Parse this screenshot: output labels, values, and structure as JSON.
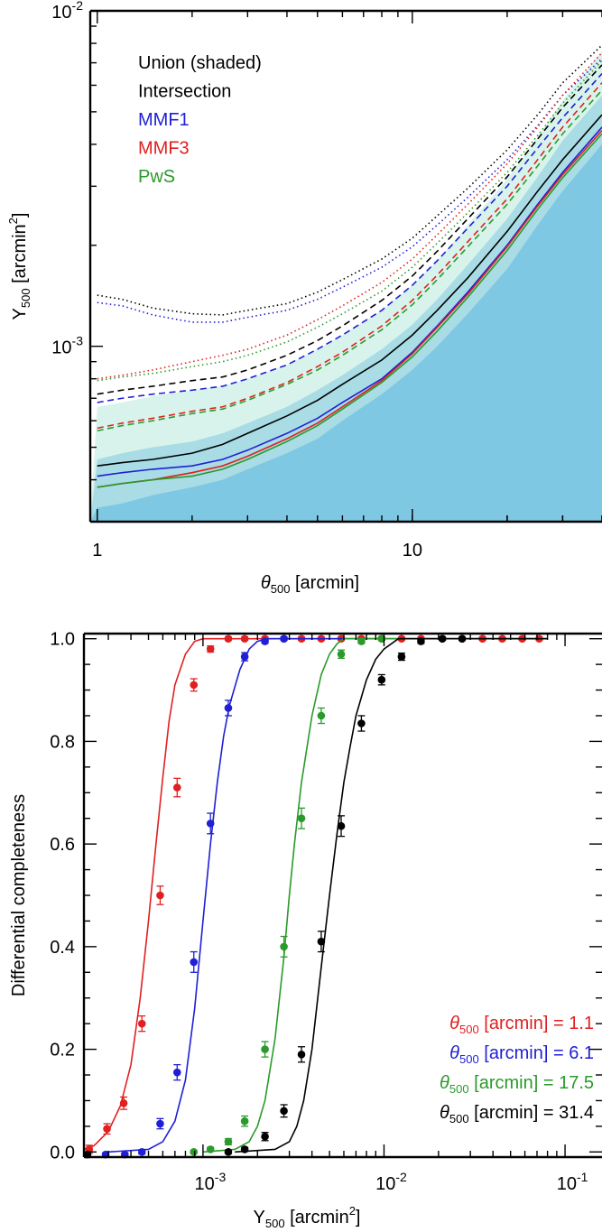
{
  "chart_data": [
    {
      "type": "line",
      "xlabel": "θ500 [arcmin]",
      "ylabel": "Y500 [arcmin²]",
      "x_scale": "log",
      "y_scale": "log",
      "xlim": [
        0.95,
        40
      ],
      "ylim": [
        0.0003,
        0.01
      ],
      "x_ticks": [
        1,
        10
      ],
      "y_ticks": [
        "10^-3",
        "10^-2"
      ],
      "x": [
        1.0,
        1.2,
        1.5,
        2.0,
        2.5,
        3.0,
        4.0,
        5.0,
        6.0,
        8.0,
        10.0,
        12.0,
        15.0,
        20.0,
        25.0,
        30.0,
        40.0
      ],
      "legend": [
        {
          "label": "Union (shaded)",
          "color": "#000000"
        },
        {
          "label": "Intersection",
          "color": "#000000"
        },
        {
          "label": "MMF1",
          "color": "#1f1fd6"
        },
        {
          "label": "MMF3",
          "color": "#e02020"
        },
        {
          "label": "PwS",
          "color": "#2a9a2a"
        }
      ],
      "union_bands": [
        {
          "name": "lower",
          "color": "#7ec8e3",
          "values": [
            0.00033,
            0.00034,
            0.00036,
            0.00038,
            0.0004,
            0.00043,
            0.00048,
            0.00053,
            0.0006,
            0.00072,
            0.00085,
            0.001,
            0.00125,
            0.0017,
            0.0023,
            0.0029,
            0.004
          ]
        },
        {
          "name": "middle",
          "color": "#a9dce5",
          "values": [
            0.00046,
            0.00048,
            0.0005,
            0.00052,
            0.00055,
            0.00059,
            0.00066,
            0.00074,
            0.00082,
            0.00098,
            0.00116,
            0.00138,
            0.00175,
            0.0024,
            0.0032,
            0.0041,
            0.0056
          ]
        },
        {
          "name": "upper",
          "color": "#d8f3ec",
          "values": [
            0.00066,
            0.00068,
            0.00071,
            0.00074,
            0.00076,
            0.0008,
            0.00088,
            0.00098,
            0.00108,
            0.00128,
            0.00152,
            0.0018,
            0.0023,
            0.00315,
            0.0042,
            0.0054,
            0.0076
          ]
        }
      ],
      "series": [
        {
          "name": "MMF1",
          "color": "#1f1fd6",
          "style": "dotted",
          "values": [
            0.00135,
            0.00132,
            0.00124,
            0.00118,
            0.00118,
            0.00122,
            0.00128,
            0.00138,
            0.0015,
            0.00172,
            0.00198,
            0.0023,
            0.00278,
            0.0036,
            0.00455,
            0.0056,
            0.0072
          ]
        },
        {
          "name": "MMF1",
          "color": "#1f1fd6",
          "style": "dashed",
          "values": [
            0.00068,
            0.0007,
            0.00072,
            0.00074,
            0.00076,
            0.0008,
            0.00088,
            0.00098,
            0.00108,
            0.00128,
            0.00152,
            0.0018,
            0.00225,
            0.003,
            0.0039,
            0.0048,
            0.0065
          ]
        },
        {
          "name": "MMF1",
          "color": "#1f1fd6",
          "style": "solid",
          "values": [
            0.00041,
            0.00042,
            0.00043,
            0.00044,
            0.00046,
            0.00049,
            0.00055,
            0.00061,
            0.00068,
            0.0008,
            0.00096,
            0.00115,
            0.00145,
            0.002,
            0.00265,
            0.0033,
            0.0045
          ]
        },
        {
          "name": "MMF3",
          "color": "#e02020",
          "style": "dotted",
          "values": [
            0.0008,
            0.00082,
            0.00085,
            0.0009,
            0.00094,
            0.00098,
            0.00108,
            0.0012,
            0.00132,
            0.00155,
            0.00182,
            0.00215,
            0.00265,
            0.0035,
            0.0045,
            0.0056,
            0.0075
          ]
        },
        {
          "name": "MMF3",
          "color": "#e02020",
          "style": "dashed",
          "values": [
            0.00057,
            0.00059,
            0.00061,
            0.00064,
            0.00066,
            0.0007,
            0.00078,
            0.00087,
            0.00096,
            0.00115,
            0.00137,
            0.00163,
            0.00205,
            0.00275,
            0.0036,
            0.0045,
            0.0061
          ]
        },
        {
          "name": "MMF3",
          "color": "#e02020",
          "style": "solid",
          "values": [
            0.00038,
            0.00039,
            0.0004,
            0.00042,
            0.00044,
            0.00047,
            0.00053,
            0.00059,
            0.00066,
            0.00079,
            0.00095,
            0.00114,
            0.00143,
            0.00198,
            0.00262,
            0.00325,
            0.0044
          ]
        },
        {
          "name": "PwS",
          "color": "#2a9a2a",
          "style": "dotted",
          "values": [
            0.00079,
            0.00081,
            0.00083,
            0.00087,
            0.0009,
            0.00094,
            0.00103,
            0.00114,
            0.00125,
            0.00146,
            0.00172,
            0.00203,
            0.0025,
            0.0033,
            0.00425,
            0.0053,
            0.0071
          ]
        },
        {
          "name": "PwS",
          "color": "#2a9a2a",
          "style": "dashed",
          "values": [
            0.00056,
            0.00058,
            0.0006,
            0.00063,
            0.00065,
            0.00069,
            0.00077,
            0.00085,
            0.00094,
            0.00112,
            0.00133,
            0.00158,
            0.00198,
            0.00265,
            0.00345,
            0.0043,
            0.0058
          ]
        },
        {
          "name": "PwS",
          "color": "#2a9a2a",
          "style": "solid",
          "values": [
            0.00038,
            0.00039,
            0.0004,
            0.00041,
            0.00043,
            0.00046,
            0.00052,
            0.00058,
            0.00065,
            0.00078,
            0.00093,
            0.00111,
            0.0014,
            0.00193,
            0.00256,
            0.00318,
            0.0043
          ]
        },
        {
          "name": "Intersection",
          "color": "#000000",
          "style": "dotted",
          "values": [
            0.00142,
            0.00138,
            0.0013,
            0.00125,
            0.00124,
            0.00128,
            0.00134,
            0.00145,
            0.00158,
            0.00182,
            0.0021,
            0.00245,
            0.00296,
            0.00385,
            0.0049,
            0.0061,
            0.0079
          ]
        },
        {
          "name": "Intersection",
          "color": "#000000",
          "style": "dashed",
          "values": [
            0.00072,
            0.00074,
            0.00076,
            0.00079,
            0.00081,
            0.00085,
            0.00094,
            0.00104,
            0.00115,
            0.00137,
            0.00162,
            0.00192,
            0.0024,
            0.0032,
            0.00415,
            0.00515,
            0.0069
          ]
        },
        {
          "name": "Intersection",
          "color": "#000000",
          "style": "solid",
          "values": [
            0.00044,
            0.00045,
            0.00046,
            0.00048,
            0.00051,
            0.00055,
            0.00062,
            0.00069,
            0.00077,
            0.00091,
            0.00108,
            0.00128,
            0.0016,
            0.0022,
            0.0029,
            0.0036,
            0.0049
          ]
        }
      ]
    },
    {
      "type": "scatter",
      "xlabel": "Y500 [arcmin²]",
      "ylabel": "Differential completeness",
      "x_scale": "log",
      "xlim": [
        0.00022,
        0.16
      ],
      "ylim": [
        -0.01,
        1.01
      ],
      "x_ticks": [
        "10^-3",
        "10^-2",
        "10^-1"
      ],
      "y_ticks": [
        "0.0",
        "0.2",
        "0.4",
        "0.6",
        "0.8",
        "1.0"
      ],
      "legend": [
        {
          "label": "θ500 [arcmin] =   1.1",
          "color": "#e02020"
        },
        {
          "label": "θ500 [arcmin] =   6.1",
          "color": "#1f1fd6"
        },
        {
          "label": "θ500 [arcmin] = 17.5",
          "color": "#2a9a2a"
        },
        {
          "label": "θ500 [arcmin] = 31.4",
          "color": "#000000"
        }
      ],
      "series": [
        {
          "name": "θ500 [arcmin] = 1.1",
          "color": "#e02020",
          "points": [
            [
              0.000235,
              0.005
            ],
            [
              0.000295,
              0.045
            ],
            [
              0.000365,
              0.095
            ],
            [
              0.00046,
              0.25
            ],
            [
              0.00058,
              0.5
            ],
            [
              0.00072,
              0.71
            ],
            [
              0.00089,
              0.91
            ],
            [
              0.0011,
              0.98
            ],
            [
              0.00138,
              1.0
            ],
            [
              0.0017,
              1.0
            ],
            [
              0.0022,
              1.0
            ],
            [
              0.0028,
              1.0
            ],
            [
              0.0035,
              1.0
            ],
            [
              0.0045,
              1.0
            ],
            [
              0.0058,
              1.0
            ],
            [
              0.0075,
              1.0
            ],
            [
              0.0097,
              1.0
            ],
            [
              0.0125,
              1.0
            ],
            [
              0.016,
              1.0
            ],
            [
              0.021,
              1.0
            ],
            [
              0.027,
              1.0
            ],
            [
              0.035,
              1.0
            ],
            [
              0.045,
              1.0
            ],
            [
              0.058,
              1.0
            ],
            [
              0.072,
              1.0
            ]
          ],
          "errors": [
            0.008,
            0.01,
            0.012,
            0.015,
            0.018,
            0.018,
            0.012,
            0.006,
            0.003,
            0.003,
            0.003,
            0.003,
            0.003,
            0.003,
            0.003,
            0.003,
            0.003,
            0.003,
            0.003,
            0.003,
            0.003,
            0.003,
            0.003,
            0.003,
            0.003
          ],
          "model_x": [
            0.00022,
            0.00025,
            0.0003,
            0.00035,
            0.0004,
            0.00045,
            0.0005,
            0.00055,
            0.0006,
            0.00065,
            0.0007,
            0.0008,
            0.0009,
            0.001,
            0.0012,
            0.002,
            0.08
          ],
          "model_y": [
            0.005,
            0.012,
            0.04,
            0.09,
            0.17,
            0.3,
            0.45,
            0.6,
            0.73,
            0.84,
            0.91,
            0.97,
            0.995,
            1.0,
            1.0,
            1.0,
            1.0
          ]
        },
        {
          "name": "θ500 [arcmin] = 6.1",
          "color": "#1f1fd6",
          "points": [
            [
              0.00029,
              -0.005
            ],
            [
              0.00037,
              -0.005
            ],
            [
              0.00046,
              0.0
            ],
            [
              0.00058,
              0.055
            ],
            [
              0.00072,
              0.155
            ],
            [
              0.00089,
              0.37
            ],
            [
              0.0011,
              0.64
            ],
            [
              0.00138,
              0.865
            ],
            [
              0.0017,
              0.965
            ],
            [
              0.0022,
              0.995
            ],
            [
              0.0028,
              1.0
            ]
          ],
          "errors": [
            0.003,
            0.003,
            0.004,
            0.01,
            0.015,
            0.02,
            0.02,
            0.015,
            0.008,
            0.004,
            0.003
          ],
          "model_x": [
            0.0003,
            0.0005,
            0.0006,
            0.0007,
            0.0008,
            0.0009,
            0.001,
            0.0011,
            0.0012,
            0.0013,
            0.0014,
            0.0016,
            0.0018,
            0.002,
            0.0023,
            0.003,
            0.08
          ],
          "model_y": [
            0.0,
            0.005,
            0.02,
            0.06,
            0.14,
            0.28,
            0.45,
            0.6,
            0.72,
            0.81,
            0.87,
            0.94,
            0.98,
            0.995,
            1.0,
            1.0,
            1.0
          ]
        },
        {
          "name": "θ500 [arcmin] = 17.5",
          "color": "#2a9a2a",
          "points": [
            [
              0.00089,
              0.0
            ],
            [
              0.0011,
              0.005
            ],
            [
              0.00138,
              0.02
            ],
            [
              0.0017,
              0.06
            ],
            [
              0.0022,
              0.2
            ],
            [
              0.0028,
              0.4
            ],
            [
              0.0035,
              0.65
            ],
            [
              0.0045,
              0.85
            ],
            [
              0.0058,
              0.97
            ],
            [
              0.0075,
              0.995
            ],
            [
              0.0097,
              1.0
            ]
          ],
          "errors": [
            0.003,
            0.004,
            0.006,
            0.01,
            0.015,
            0.02,
            0.02,
            0.015,
            0.008,
            0.004,
            0.003
          ],
          "model_x": [
            0.001,
            0.0015,
            0.0018,
            0.002,
            0.0022,
            0.0025,
            0.0028,
            0.003,
            0.0032,
            0.0035,
            0.004,
            0.0045,
            0.005,
            0.0055,
            0.006,
            0.007,
            0.08
          ],
          "model_y": [
            0.0,
            0.005,
            0.02,
            0.05,
            0.1,
            0.22,
            0.38,
            0.5,
            0.6,
            0.72,
            0.85,
            0.93,
            0.97,
            0.99,
            1.0,
            1.0,
            1.0
          ]
        },
        {
          "name": "θ500 [arcmin] = 31.4",
          "color": "#000000",
          "points": [
            [
              0.00023,
              -0.005
            ],
            [
              0.00138,
              0.0
            ],
            [
              0.0017,
              0.005
            ],
            [
              0.0022,
              0.03
            ],
            [
              0.0028,
              0.08
            ],
            [
              0.0035,
              0.19
            ],
            [
              0.0045,
              0.41
            ],
            [
              0.0058,
              0.635
            ],
            [
              0.0075,
              0.835
            ],
            [
              0.0097,
              0.92
            ],
            [
              0.0125,
              0.965
            ],
            [
              0.016,
              0.995
            ],
            [
              0.021,
              1.0
            ],
            [
              0.027,
              1.0
            ]
          ],
          "errors": [
            0.003,
            0.003,
            0.004,
            0.008,
            0.012,
            0.015,
            0.02,
            0.02,
            0.015,
            0.01,
            0.007,
            0.004,
            0.003,
            0.003
          ],
          "model_x": [
            0.0015,
            0.0025,
            0.003,
            0.0033,
            0.0036,
            0.004,
            0.0045,
            0.005,
            0.0055,
            0.006,
            0.0065,
            0.007,
            0.008,
            0.009,
            0.01,
            0.012,
            0.08
          ],
          "model_y": [
            0.0,
            0.005,
            0.02,
            0.05,
            0.1,
            0.2,
            0.36,
            0.5,
            0.62,
            0.72,
            0.79,
            0.85,
            0.92,
            0.96,
            0.98,
            1.0,
            1.0
          ]
        }
      ]
    }
  ]
}
